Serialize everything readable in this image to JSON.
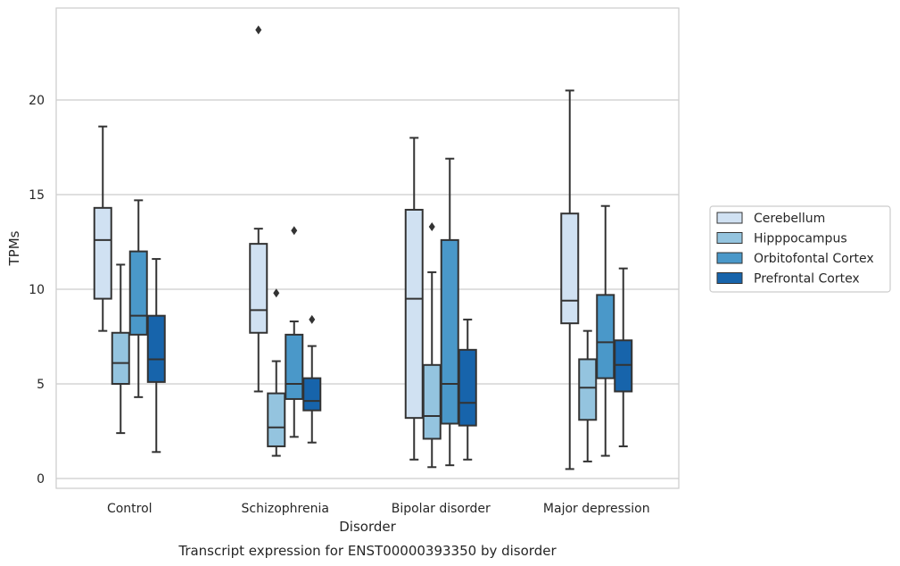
{
  "chart_data": {
    "type": "box",
    "title": "",
    "caption": "Transcript expression for ENST00000393350 by disorder",
    "xlabel": "Disorder",
    "ylabel": "TPMs",
    "ylim": [
      -0.5,
      25
    ],
    "yticks": [
      0,
      5,
      10,
      15,
      20
    ],
    "grid": "horizontal",
    "legend": {
      "position": "right",
      "entries": [
        "Cerebellum",
        "Hipppocampus",
        "Orbitofontal Cortex",
        "Prefrontal Cortex"
      ]
    },
    "colors": [
      "#d0e1f2",
      "#94c4df",
      "#4a98c9",
      "#1764ab"
    ],
    "categories": [
      "Control",
      "Schizophrenia",
      "Bipolar disorder",
      "Major depression"
    ],
    "series": [
      {
        "name": "Cerebellum",
        "boxes": [
          {
            "whisker_low": 7.8,
            "q1": 9.5,
            "median": 12.6,
            "q3": 14.3,
            "whisker_high": 18.6,
            "outliers": []
          },
          {
            "whisker_low": 4.6,
            "q1": 7.7,
            "median": 8.9,
            "q3": 12.4,
            "whisker_high": 13.2,
            "outliers": [
              23.7
            ]
          },
          {
            "whisker_low": 1.0,
            "q1": 3.2,
            "median": 9.5,
            "q3": 14.2,
            "whisker_high": 18.0,
            "outliers": []
          },
          {
            "whisker_low": 0.5,
            "q1": 8.2,
            "median": 9.4,
            "q3": 14.0,
            "whisker_high": 20.5,
            "outliers": []
          }
        ]
      },
      {
        "name": "Hipppocampus",
        "boxes": [
          {
            "whisker_low": 2.4,
            "q1": 5.0,
            "median": 6.1,
            "q3": 7.7,
            "whisker_high": 11.3,
            "outliers": []
          },
          {
            "whisker_low": 1.2,
            "q1": 1.7,
            "median": 2.7,
            "q3": 4.5,
            "whisker_high": 6.2,
            "outliers": [
              9.8
            ]
          },
          {
            "whisker_low": 0.6,
            "q1": 2.1,
            "median": 3.3,
            "q3": 6.0,
            "whisker_high": 10.9,
            "outliers": [
              13.3
            ]
          },
          {
            "whisker_low": 0.9,
            "q1": 3.1,
            "median": 4.8,
            "q3": 6.3,
            "whisker_high": 7.8,
            "outliers": []
          }
        ]
      },
      {
        "name": "Orbitofontal Cortex",
        "boxes": [
          {
            "whisker_low": 4.3,
            "q1": 7.6,
            "median": 8.6,
            "q3": 12.0,
            "whisker_high": 14.7,
            "outliers": []
          },
          {
            "whisker_low": 2.2,
            "q1": 4.2,
            "median": 5.0,
            "q3": 7.6,
            "whisker_high": 8.3,
            "outliers": [
              13.1
            ]
          },
          {
            "whisker_low": 0.7,
            "q1": 2.9,
            "median": 5.0,
            "q3": 12.6,
            "whisker_high": 16.9,
            "outliers": []
          },
          {
            "whisker_low": 1.2,
            "q1": 5.3,
            "median": 7.2,
            "q3": 9.7,
            "whisker_high": 14.4,
            "outliers": []
          }
        ]
      },
      {
        "name": "Prefrontal Cortex",
        "boxes": [
          {
            "whisker_low": 1.4,
            "q1": 5.1,
            "median": 6.3,
            "q3": 8.6,
            "whisker_high": 11.6,
            "outliers": []
          },
          {
            "whisker_low": 1.9,
            "q1": 3.6,
            "median": 4.1,
            "q3": 5.3,
            "whisker_high": 7.0,
            "outliers": [
              8.4
            ]
          },
          {
            "whisker_low": 1.0,
            "q1": 2.8,
            "median": 4.0,
            "q3": 6.8,
            "whisker_high": 8.4,
            "outliers": []
          },
          {
            "whisker_low": 1.7,
            "q1": 4.6,
            "median": 6.0,
            "q3": 7.3,
            "whisker_high": 11.1,
            "outliers": []
          }
        ]
      }
    ]
  }
}
